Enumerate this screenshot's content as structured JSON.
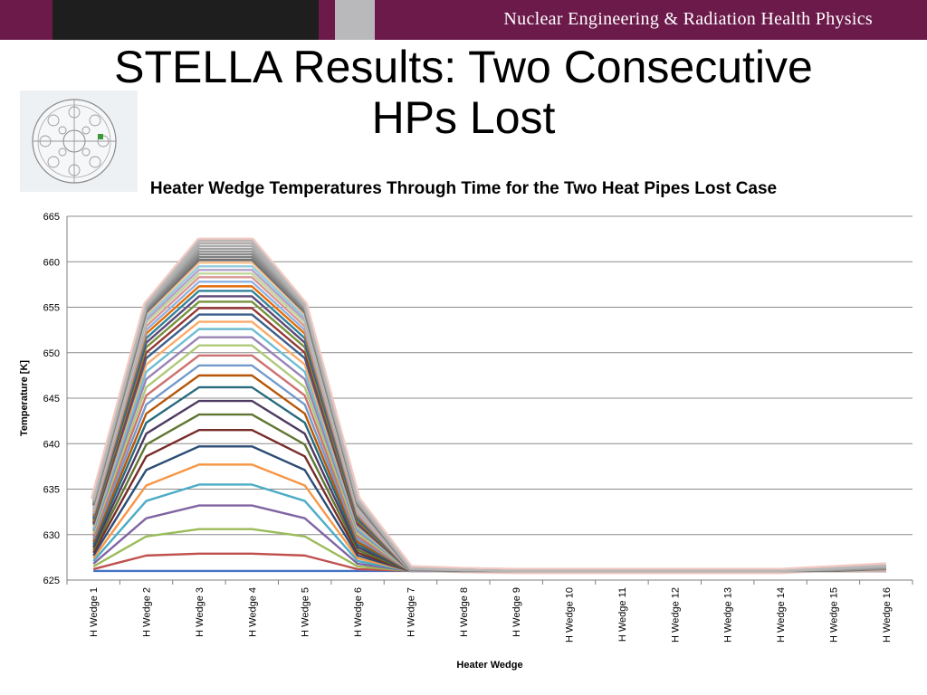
{
  "header": {
    "org_name": "Nuclear Engineering & Radiation Health Physics",
    "bar_color": "#6b1a4a"
  },
  "slide": {
    "title_line1": "STELLA Results: Two Consecutive",
    "title_line2": "HPs Lost",
    "thumbnail_icon": "reactor-cross-section-diagram"
  },
  "chart_data": {
    "type": "line",
    "title": "Heater Wedge Temperatures Through Time for the Two Heat Pipes Lost Case",
    "xlabel": "Heater Wedge",
    "ylabel": "Temperature [K]",
    "ylim": [
      625,
      665
    ],
    "yticks": [
      625,
      630,
      635,
      640,
      645,
      650,
      655,
      660,
      665
    ],
    "grid": true,
    "legend": "none",
    "categories": [
      "H Wedge 1",
      "H Wedge 2",
      "H Wedge 3",
      "H Wedge 4",
      "H Wedge 5",
      "H Wedge 6",
      "H Wedge 7",
      "H Wedge 8",
      "H Wedge 9",
      "H Wedge 10",
      "H Wedge 11",
      "H Wedge 12",
      "H Wedge 13",
      "H Wedge 14",
      "H Wedge 15",
      "H Wedge 16"
    ],
    "series": [
      {
        "values": [
          626,
          626,
          626,
          626,
          626,
          626,
          626,
          626,
          626,
          626,
          626,
          626,
          626,
          626,
          626,
          626
        ]
      },
      {
        "values": [
          626.2,
          627.7,
          627.9,
          627.9,
          627.7,
          626.2,
          626,
          626,
          626,
          626,
          626,
          626,
          626,
          626,
          626,
          626
        ]
      },
      {
        "values": [
          626.5,
          629.8,
          630.6,
          630.6,
          629.8,
          626.5,
          626,
          626,
          626,
          626,
          626,
          626,
          626,
          626,
          626,
          626
        ]
      },
      {
        "values": [
          626.8,
          631.8,
          633.2,
          633.2,
          631.8,
          626.8,
          626,
          626,
          626,
          626,
          626,
          626,
          626,
          626,
          626,
          626
        ]
      },
      {
        "values": [
          627.1,
          633.7,
          635.5,
          635.5,
          633.7,
          627.1,
          626,
          626,
          626,
          626,
          626,
          626,
          626,
          626,
          626,
          626
        ]
      },
      {
        "values": [
          627.4,
          635.4,
          637.7,
          637.7,
          635.4,
          627.4,
          626,
          626,
          626,
          626,
          626,
          626,
          626,
          626,
          626,
          626
        ]
      },
      {
        "values": [
          627.7,
          637.1,
          639.7,
          639.7,
          637.1,
          627.7,
          626,
          626,
          626,
          626,
          626,
          626,
          626,
          626,
          626,
          626
        ]
      },
      {
        "values": [
          628.0,
          638.6,
          641.5,
          641.5,
          638.6,
          628.0,
          626,
          626,
          626,
          626,
          626,
          626,
          626,
          626,
          626,
          626
        ]
      },
      {
        "values": [
          628.3,
          639.9,
          643.2,
          643.2,
          639.9,
          628.3,
          626,
          626,
          626,
          626,
          626,
          626,
          626,
          626,
          626,
          626
        ]
      },
      {
        "values": [
          628.6,
          641.1,
          644.7,
          644.7,
          641.1,
          628.6,
          626,
          626,
          626,
          626,
          626,
          626,
          626,
          626,
          626,
          626
        ]
      },
      {
        "values": [
          628.9,
          642.3,
          646.2,
          646.2,
          642.3,
          628.9,
          626,
          626,
          626,
          626,
          626,
          626,
          626,
          626,
          626,
          626
        ]
      },
      {
        "values": [
          629.2,
          643.3,
          647.5,
          647.5,
          643.3,
          629.2,
          626,
          626,
          626,
          626,
          626,
          626,
          626,
          626,
          626,
          626
        ]
      },
      {
        "values": [
          629.5,
          644.3,
          648.6,
          648.6,
          644.3,
          629.5,
          626,
          626,
          626,
          626,
          626,
          626,
          626,
          626,
          626,
          626
        ]
      },
      {
        "values": [
          629.8,
          645.3,
          649.7,
          649.7,
          645.3,
          629.8,
          626,
          626,
          626,
          626,
          626,
          626,
          626,
          626,
          626,
          626
        ]
      },
      {
        "values": [
          630.1,
          646.2,
          650.8,
          650.8,
          646.2,
          630.1,
          626,
          626,
          626,
          626,
          626,
          626,
          626,
          626,
          626,
          626
        ]
      },
      {
        "values": [
          630.4,
          647.1,
          651.7,
          651.7,
          647.1,
          630.4,
          626,
          626,
          626,
          626,
          626,
          626,
          626,
          626,
          626,
          626
        ]
      },
      {
        "values": [
          630.6,
          647.9,
          652.6,
          652.6,
          647.9,
          630.6,
          626,
          626,
          626,
          626,
          626,
          626,
          626,
          626,
          626,
          626
        ]
      },
      {
        "values": [
          630.9,
          648.7,
          653.4,
          653.4,
          648.7,
          630.9,
          626,
          626,
          626,
          626,
          626,
          626,
          626,
          626,
          626,
          626
        ]
      },
      {
        "values": [
          631.1,
          649.4,
          654.2,
          654.2,
          649.4,
          631.1,
          626,
          626,
          626,
          626,
          626,
          626,
          626,
          626,
          626,
          626
        ]
      },
      {
        "values": [
          631.3,
          650.0,
          654.9,
          654.9,
          650.0,
          631.3,
          626,
          626,
          626,
          626,
          626,
          626,
          626,
          626,
          626,
          626
        ]
      },
      {
        "values": [
          631.5,
          650.6,
          655.6,
          655.6,
          650.6,
          631.5,
          626,
          626,
          626,
          626,
          626,
          626,
          626,
          626,
          626,
          626
        ]
      },
      {
        "values": [
          631.7,
          651.1,
          656.2,
          656.2,
          651.1,
          631.7,
          626,
          626,
          626,
          626,
          626,
          626,
          626,
          626,
          626,
          626
        ]
      },
      {
        "values": [
          631.9,
          651.6,
          656.8,
          656.8,
          651.6,
          631.9,
          626,
          626,
          626,
          626,
          626,
          626,
          626,
          626,
          626,
          626
        ]
      },
      {
        "values": [
          632.1,
          652.1,
          657.3,
          657.3,
          652.1,
          632.1,
          626,
          626,
          626,
          626,
          626,
          626,
          626,
          626,
          626,
          626
        ]
      },
      {
        "values": [
          632.3,
          652.5,
          657.8,
          657.8,
          652.5,
          632.3,
          626,
          626,
          626,
          626,
          626,
          626,
          626,
          626,
          626,
          626
        ]
      },
      {
        "values": [
          632.5,
          652.9,
          658.3,
          658.3,
          652.9,
          632.5,
          626,
          626,
          626,
          626,
          626,
          626,
          626,
          626,
          626,
          626
        ]
      },
      {
        "values": [
          632.7,
          653.3,
          658.7,
          658.7,
          653.3,
          632.7,
          626,
          626,
          626,
          626,
          626,
          626,
          626,
          626,
          626,
          626
        ]
      },
      {
        "values": [
          632.8,
          653.6,
          659.1,
          659.1,
          653.6,
          632.8,
          626,
          626,
          626,
          626,
          626,
          626,
          626,
          626,
          626,
          626
        ]
      },
      {
        "values": [
          633.0,
          653.9,
          659.5,
          659.5,
          653.9,
          633.0,
          626.1,
          626,
          626,
          626,
          626,
          626,
          626,
          626,
          626,
          626.1
        ]
      },
      {
        "values": [
          633.1,
          654.2,
          659.9,
          659.9,
          654.2,
          633.1,
          626.1,
          626,
          626,
          626,
          626,
          626,
          626,
          626,
          626,
          626.1
        ]
      },
      {
        "values": [
          633.2,
          654.4,
          660.2,
          660.2,
          654.4,
          633.2,
          626.1,
          626,
          626,
          626,
          626,
          626,
          626,
          626,
          626,
          626.2
        ]
      },
      {
        "values": [
          633.3,
          654.6,
          660.5,
          660.5,
          654.6,
          633.3,
          626.1,
          626,
          626,
          626,
          626,
          626,
          626,
          626,
          626.1,
          626.2
        ]
      },
      {
        "values": [
          633.4,
          654.8,
          660.8,
          660.8,
          654.8,
          633.4,
          626.2,
          626.1,
          626,
          626,
          626,
          626,
          626,
          626,
          626.1,
          626.3
        ]
      },
      {
        "values": [
          633.5,
          654.9,
          661.1,
          661.1,
          654.9,
          633.5,
          626.2,
          626.1,
          626,
          626,
          626,
          626,
          626,
          626,
          626.1,
          626.3
        ]
      },
      {
        "values": [
          633.6,
          655.0,
          661.4,
          661.4,
          655.0,
          633.6,
          626.2,
          626.1,
          626,
          626,
          626,
          626,
          626,
          626,
          626.2,
          626.4
        ]
      },
      {
        "values": [
          633.7,
          655.1,
          661.7,
          661.7,
          655.1,
          633.7,
          626.2,
          626.1,
          626,
          626,
          626,
          626,
          626,
          626,
          626.2,
          626.5
        ]
      },
      {
        "values": [
          633.8,
          655.2,
          662.0,
          662.0,
          655.2,
          633.8,
          626.3,
          626.1,
          626,
          626,
          626,
          626,
          626,
          626,
          626.2,
          626.5
        ]
      },
      {
        "values": [
          633.9,
          655.3,
          662.3,
          662.3,
          655.3,
          633.9,
          626.3,
          626.1,
          626,
          626,
          626,
          626,
          626,
          626,
          626.3,
          626.6
        ]
      }
    ]
  }
}
